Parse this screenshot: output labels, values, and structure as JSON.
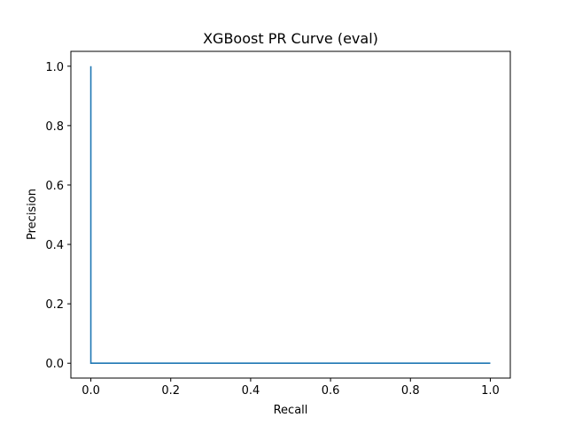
{
  "chart_data": {
    "type": "line",
    "title": "XGBoost PR Curve (eval)",
    "xlabel": "Recall",
    "ylabel": "Precision",
    "xlim": [
      -0.05,
      1.05
    ],
    "ylim": [
      -0.05,
      1.05
    ],
    "xticks": [
      0.0,
      0.2,
      0.4,
      0.6,
      0.8,
      1.0
    ],
    "yticks": [
      0.0,
      0.2,
      0.4,
      0.6,
      0.8,
      1.0
    ],
    "xtick_labels": [
      "0.0",
      "0.2",
      "0.4",
      "0.6",
      "0.8",
      "1.0"
    ],
    "ytick_labels": [
      "0.0",
      "0.2",
      "0.4",
      "0.6",
      "0.8",
      "1.0"
    ],
    "grid": false,
    "series": [
      {
        "color": "#1f77b4",
        "x": [
          0.0,
          0.0,
          1.0
        ],
        "y": [
          1.0,
          0.0,
          0.0
        ]
      }
    ]
  }
}
